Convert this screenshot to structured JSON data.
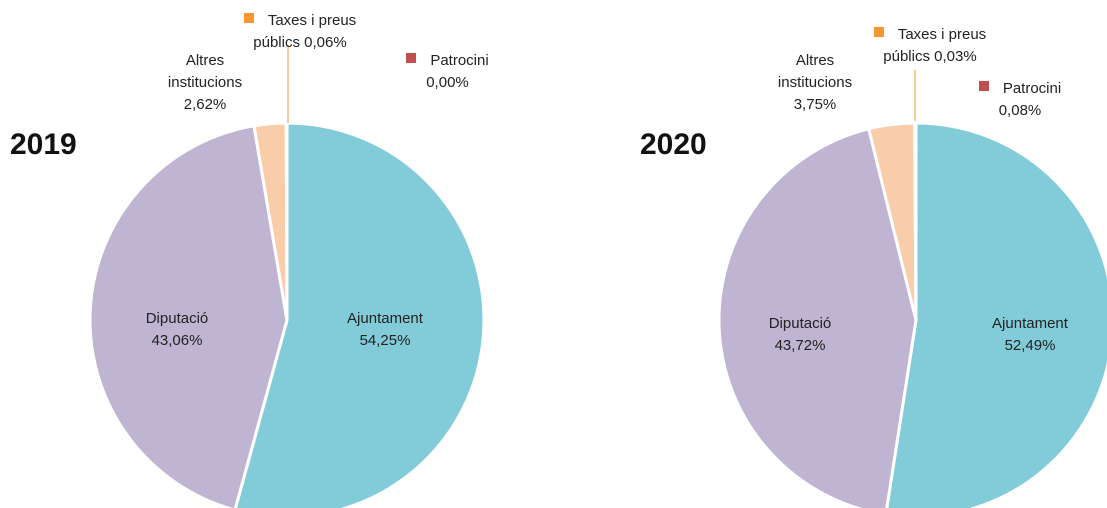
{
  "chart_data": [
    {
      "type": "pie",
      "title": "2019",
      "categories": [
        "Ajuntament",
        "Diputació",
        "Altres institucions",
        "Taxes i preus públics",
        "Patrocini"
      ],
      "values": [
        54.25,
        43.06,
        2.62,
        0.06,
        0.0
      ],
      "value_labels": [
        "54,25%",
        "43,06%",
        "2,62%",
        "0,06%",
        "0,00%"
      ],
      "colors": [
        "#82ccd9",
        "#bfb5d3",
        "#f9cda9",
        "#f79633",
        "#c0504d"
      ]
    },
    {
      "type": "pie",
      "title": "2020",
      "categories": [
        "Ajuntament",
        "Diputació",
        "Altres institucions",
        "Taxes i preus públics",
        "Patrocini"
      ],
      "values": [
        52.49,
        43.72,
        3.75,
        0.03,
        0.08
      ],
      "value_labels": [
        "52,49%",
        "43,72%",
        "3,75%",
        "0,03%",
        "0,08%"
      ],
      "colors": [
        "#82ccd9",
        "#bfb5d3",
        "#f9cda9",
        "#f79633",
        "#c0504d"
      ]
    }
  ]
}
